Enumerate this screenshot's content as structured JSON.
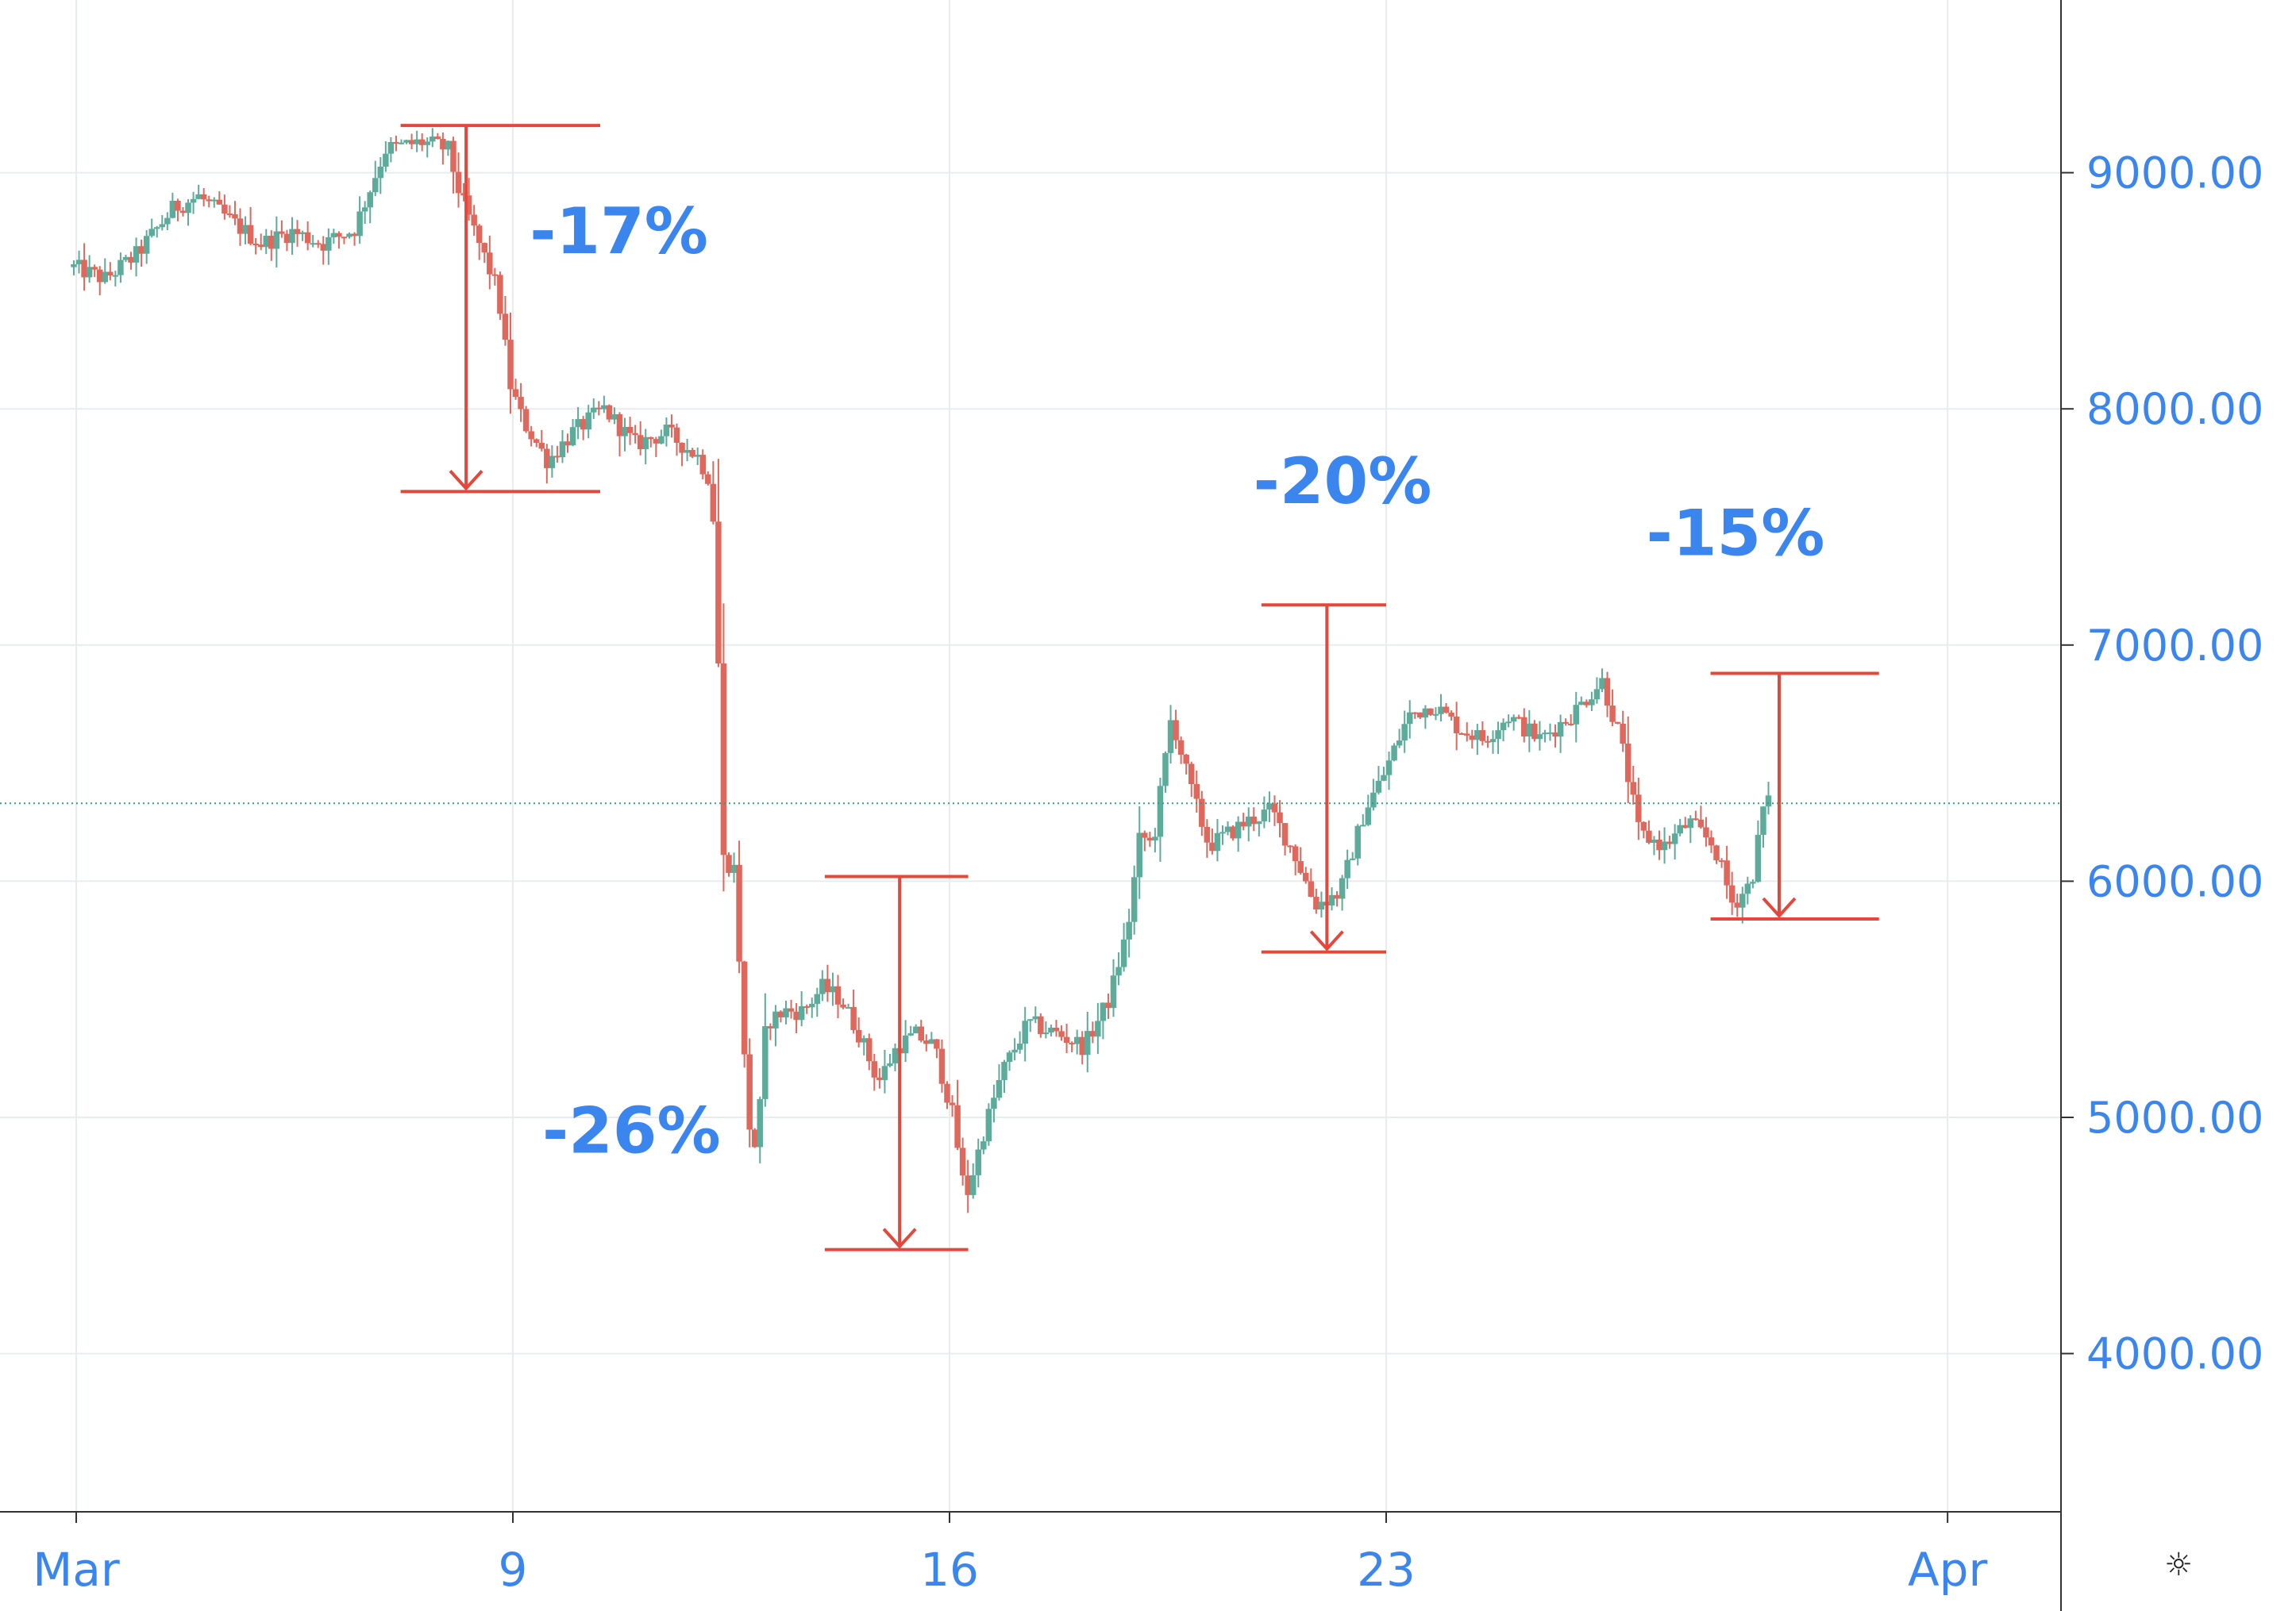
{
  "chart_data": {
    "type": "candlestick",
    "title": "",
    "xlabel": "",
    "ylabel": "",
    "ylim": [
      3400,
      9700
    ],
    "x_range_days": [
      1.9,
      35.5
    ],
    "y_ticks": [
      "4000.00",
      "5000.00",
      "6000.00",
      "7000.00",
      "8000.00",
      "9000.00"
    ],
    "x_ticks": [
      {
        "label": "Mar",
        "day": 2
      },
      {
        "label": "9",
        "day": 9
      },
      {
        "label": "16",
        "day": 16
      },
      {
        "label": "23",
        "day": 23
      },
      {
        "label": "Apr",
        "day": 32
      }
    ],
    "current_price": 6330,
    "grid": true,
    "colors": {
      "up": "#5cab9b",
      "down": "#e0675b",
      "axis_text": "#3a86ee",
      "annotation": "#e5483b",
      "grid": "#e8ecef",
      "price_line": "#2a9d8f"
    },
    "path": [
      [
        2.0,
        8600
      ],
      [
        2.5,
        8550
      ],
      [
        3.0,
        8650
      ],
      [
        3.6,
        8850
      ],
      [
        4.0,
        8900
      ],
      [
        4.5,
        8800
      ],
      [
        5.0,
        8700
      ],
      [
        5.5,
        8750
      ],
      [
        6.0,
        8700
      ],
      [
        6.5,
        8760
      ],
      [
        7.0,
        9100
      ],
      [
        7.6,
        9130
      ],
      [
        8.0,
        9100
      ],
      [
        8.2,
        8900
      ],
      [
        8.5,
        8700
      ],
      [
        8.8,
        8500
      ],
      [
        9.0,
        8100
      ],
      [
        9.2,
        7950
      ],
      [
        9.6,
        7780
      ],
      [
        10.0,
        7900
      ],
      [
        10.5,
        8000
      ],
      [
        11.0,
        7850
      ],
      [
        11.5,
        7900
      ],
      [
        12.0,
        7800
      ],
      [
        12.2,
        7700
      ],
      [
        12.3,
        7400
      ],
      [
        12.4,
        6100
      ],
      [
        12.6,
        6050
      ],
      [
        12.8,
        5000
      ],
      [
        12.95,
        4850
      ],
      [
        13.1,
        5400
      ],
      [
        13.4,
        5450
      ],
      [
        13.7,
        5450
      ],
      [
        14.0,
        5550
      ],
      [
        14.3,
        5500
      ],
      [
        14.6,
        5350
      ],
      [
        14.9,
        5150
      ],
      [
        15.2,
        5300
      ],
      [
        15.5,
        5350
      ],
      [
        15.8,
        5300
      ],
      [
        16.1,
        5000
      ],
      [
        16.3,
        4650
      ],
      [
        16.6,
        4950
      ],
      [
        16.9,
        5200
      ],
      [
        17.3,
        5400
      ],
      [
        17.8,
        5350
      ],
      [
        18.2,
        5300
      ],
      [
        18.6,
        5500
      ],
      [
        18.9,
        5800
      ],
      [
        19.1,
        6200
      ],
      [
        19.3,
        6150
      ],
      [
        19.6,
        6700
      ],
      [
        19.9,
        6400
      ],
      [
        20.2,
        6150
      ],
      [
        20.5,
        6200
      ],
      [
        20.8,
        6250
      ],
      [
        21.2,
        6300
      ],
      [
        21.6,
        6100
      ],
      [
        21.9,
        5900
      ],
      [
        22.3,
        5950
      ],
      [
        22.7,
        6300
      ],
      [
        23.0,
        6450
      ],
      [
        23.4,
        6700
      ],
      [
        23.8,
        6750
      ],
      [
        24.2,
        6650
      ],
      [
        24.6,
        6600
      ],
      [
        25.0,
        6700
      ],
      [
        25.5,
        6600
      ],
      [
        26.0,
        6700
      ],
      [
        26.5,
        6850
      ],
      [
        26.8,
        6600
      ],
      [
        27.1,
        6200
      ],
      [
        27.5,
        6150
      ],
      [
        27.9,
        6250
      ],
      [
        28.3,
        6150
      ],
      [
        28.6,
        5900
      ],
      [
        28.9,
        6000
      ],
      [
        29.1,
        6330
      ]
    ]
  },
  "annotations": [
    {
      "label": "-17%",
      "label_x_day": 10.7,
      "label_y": 8660,
      "x_day": 8.25,
      "bracket_x1_day": 7.2,
      "bracket_x2_day": 10.4,
      "top": 9200,
      "bottom": 7650
    },
    {
      "label": "-26%",
      "label_x_day": 10.9,
      "label_y": 4850,
      "x_day": 15.2,
      "bracket_x1_day": 14.0,
      "bracket_x2_day": 16.3,
      "top": 6020,
      "bottom": 4440
    },
    {
      "label": "-20%",
      "label_x_day": 22.3,
      "label_y": 7600,
      "x_day": 22.05,
      "bracket_x1_day": 21.0,
      "bracket_x2_day": 23.0,
      "top": 7170,
      "bottom": 5700
    },
    {
      "label": "-15%",
      "label_x_day": 28.6,
      "label_y": 7380,
      "x_day": 29.3,
      "bracket_x1_day": 28.2,
      "bracket_x2_day": 30.9,
      "top": 6880,
      "bottom": 5840
    }
  ],
  "settings_icon": "gear-icon"
}
